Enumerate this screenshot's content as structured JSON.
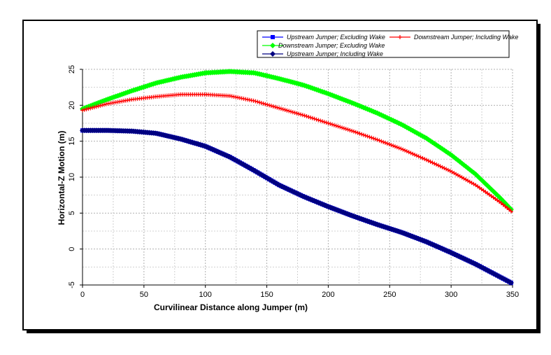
{
  "chart_data": {
    "type": "line",
    "xlabel": "Curvilinear Distance along Jumper (m)",
    "ylabel": "Horizontal-Z Motion (m)",
    "xlim": [
      0,
      350
    ],
    "ylim": [
      -5,
      25
    ],
    "xticks": [
      0,
      50,
      100,
      150,
      200,
      250,
      300,
      350
    ],
    "yticks": [
      -5,
      0,
      5,
      10,
      15,
      20,
      25
    ],
    "grid": true,
    "legend_position": "top-right",
    "series": [
      {
        "name": "Upstream Jumper; Excluding Wake",
        "color": "#0000ff",
        "marker": "square",
        "x": [
          0,
          20,
          40,
          60,
          80,
          100,
          120,
          140,
          160,
          180,
          200,
          220,
          240,
          260,
          280,
          300,
          320,
          340,
          350
        ],
        "y": [
          16.5,
          16.5,
          16.4,
          16.1,
          15.3,
          14.3,
          12.8,
          10.9,
          8.9,
          7.3,
          5.9,
          4.6,
          3.4,
          2.3,
          1.0,
          -0.5,
          -2.1,
          -3.9,
          -4.8
        ]
      },
      {
        "name": "Downstream Jumper; Including Wake",
        "color": "#ff0000",
        "marker": "plus",
        "x": [
          0,
          20,
          40,
          60,
          80,
          100,
          120,
          140,
          160,
          180,
          200,
          220,
          240,
          260,
          280,
          300,
          320,
          340,
          350
        ],
        "y": [
          19.3,
          20.2,
          20.8,
          21.2,
          21.5,
          21.5,
          21.3,
          20.6,
          19.6,
          18.6,
          17.5,
          16.4,
          15.2,
          13.9,
          12.4,
          10.8,
          8.9,
          6.5,
          5.1
        ]
      },
      {
        "name": "Downstream Jumper; Excluding Wake",
        "color": "#00ff00",
        "marker": "diamond",
        "x": [
          0,
          20,
          40,
          60,
          80,
          100,
          120,
          140,
          160,
          180,
          200,
          220,
          240,
          260,
          280,
          300,
          320,
          340,
          350
        ],
        "y": [
          19.5,
          20.8,
          22.0,
          23.1,
          23.9,
          24.5,
          24.7,
          24.5,
          23.7,
          22.8,
          21.6,
          20.3,
          18.9,
          17.3,
          15.4,
          13.1,
          10.4,
          7.1,
          5.3
        ]
      },
      {
        "name": "Upstream Jumper; Including Wake",
        "color": "#000080",
        "marker": "diamond",
        "x": [
          0,
          20,
          40,
          60,
          80,
          100,
          120,
          140,
          160,
          180,
          200,
          220,
          240,
          260,
          280,
          300,
          320,
          340,
          350
        ],
        "y": [
          16.5,
          16.5,
          16.4,
          16.1,
          15.3,
          14.3,
          12.8,
          10.9,
          8.9,
          7.3,
          5.9,
          4.6,
          3.4,
          2.3,
          1.0,
          -0.5,
          -2.1,
          -3.9,
          -4.8
        ]
      }
    ]
  }
}
